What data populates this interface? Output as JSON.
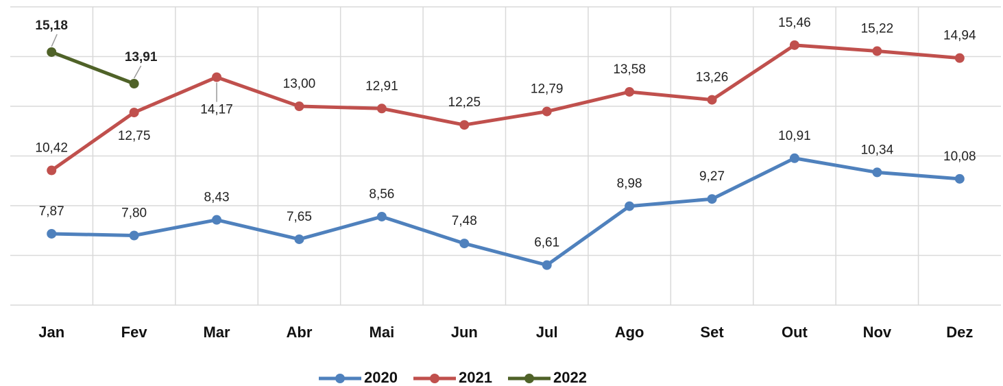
{
  "chart_data": {
    "type": "line",
    "categories": [
      "Jan",
      "Fev",
      "Mar",
      "Abr",
      "Mai",
      "Jun",
      "Jul",
      "Ago",
      "Set",
      "Out",
      "Nov",
      "Dez"
    ],
    "series": [
      {
        "name": "2020",
        "color": "#4f81bd",
        "values": [
          7.87,
          7.8,
          8.43,
          7.65,
          8.56,
          7.48,
          6.61,
          8.98,
          9.27,
          10.91,
          10.34,
          10.08
        ],
        "value_labels": [
          "7,87",
          "7,80",
          "8,43",
          "7,65",
          "8,56",
          "7,48",
          "6,61",
          "8,98",
          "9,27",
          "10,91",
          "10,34",
          "10,08"
        ]
      },
      {
        "name": "2021",
        "color": "#c0504d",
        "values": [
          10.42,
          12.75,
          14.17,
          13.0,
          12.91,
          12.25,
          12.79,
          13.58,
          13.26,
          15.46,
          15.22,
          14.94
        ],
        "value_labels": [
          "10,42",
          "12,75",
          "14,17",
          "13,00",
          "12,91",
          "12,25",
          "12,79",
          "13,58",
          "13,26",
          "15,46",
          "15,22",
          "14,94"
        ]
      },
      {
        "name": "2022",
        "color": "#4f6228",
        "values": [
          15.18,
          13.91,
          null,
          null,
          null,
          null,
          null,
          null,
          null,
          null,
          null,
          null
        ],
        "value_labels": [
          "15,18",
          "13,91",
          null,
          null,
          null,
          null,
          null,
          null,
          null,
          null,
          null,
          null
        ]
      }
    ],
    "ylim": [
      5,
      17
    ],
    "yticks": [
      5,
      7,
      9,
      11,
      13,
      15,
      17
    ],
    "grid": true,
    "y_tick_labels": false,
    "legend": "bottom"
  }
}
